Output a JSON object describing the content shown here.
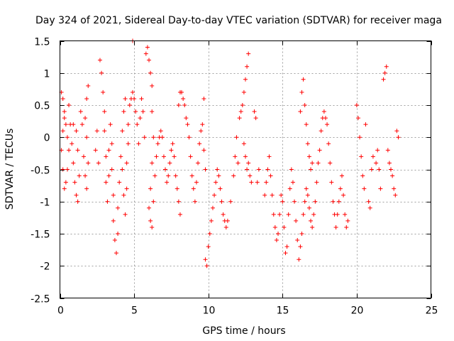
{
  "chart_data": {
    "type": "scatter",
    "title": "Day 324 of 2021, Sidereal Day-to-day VTEC variation (SDTVAR) for receiver maga",
    "xlabel": "GPS time / hours",
    "ylabel": "SDTVAR / TECUs",
    "xlim": [
      0,
      25
    ],
    "ylim": [
      -2.5,
      1.5
    ],
    "xticks": [
      0,
      5,
      10,
      15,
      20,
      25
    ],
    "yticks": [
      -2.5,
      -2,
      -1.5,
      -1,
      -0.5,
      0,
      0.5,
      1,
      1.5
    ],
    "grid": true,
    "marker": "plus",
    "color": "#ff0000",
    "series": [
      {
        "name": "SDTVAR",
        "points": [
          [
            0.1,
            0.7
          ],
          [
            0.2,
            0.6
          ],
          [
            0.3,
            0.4
          ],
          [
            0.4,
            0.2
          ],
          [
            0.5,
            0.0
          ],
          [
            0.6,
            -0.2
          ],
          [
            0.5,
            -0.5
          ],
          [
            0.4,
            -0.7
          ],
          [
            0.3,
            -0.8
          ],
          [
            0.2,
            -0.5
          ],
          [
            0.1,
            -0.2
          ],
          [
            0.2,
            0.1
          ],
          [
            0.3,
            0.3
          ],
          [
            0.6,
            0.5
          ],
          [
            0.7,
            0.2
          ],
          [
            0.8,
            -0.1
          ],
          [
            0.9,
            -0.4
          ],
          [
            1.0,
            -0.7
          ],
          [
            1.1,
            -0.9
          ],
          [
            1.2,
            -1.0
          ],
          [
            1.3,
            -0.6
          ],
          [
            1.2,
            -0.2
          ],
          [
            1.1,
            0.1
          ],
          [
            0.9,
            0.2
          ],
          [
            1.4,
            0.4
          ],
          [
            1.5,
            0.2
          ],
          [
            1.6,
            -0.3
          ],
          [
            1.7,
            -0.6
          ],
          [
            1.8,
            -0.8
          ],
          [
            1.9,
            -0.4
          ],
          [
            1.8,
            0.0
          ],
          [
            1.7,
            0.3
          ],
          [
            1.8,
            0.6
          ],
          [
            1.9,
            0.8
          ],
          [
            2.4,
            -0.2
          ],
          [
            2.5,
            0.1
          ],
          [
            2.6,
            -0.4
          ],
          [
            2.7,
            1.2
          ],
          [
            2.8,
            1.0
          ],
          [
            2.9,
            0.7
          ],
          [
            3.0,
            0.4
          ],
          [
            3.0,
            0.1
          ],
          [
            3.1,
            -0.3
          ],
          [
            3.1,
            -0.7
          ],
          [
            3.2,
            -1.0
          ],
          [
            3.3,
            -0.6
          ],
          [
            3.3,
            -0.2
          ],
          [
            3.4,
            0.2
          ],
          [
            3.5,
            -0.1
          ],
          [
            3.5,
            -0.5
          ],
          [
            3.6,
            -0.9
          ],
          [
            3.6,
            -1.3
          ],
          [
            3.7,
            -1.6
          ],
          [
            3.8,
            -1.8
          ],
          [
            3.9,
            -1.5
          ],
          [
            3.9,
            -1.1
          ],
          [
            4.0,
            -0.7
          ],
          [
            4.1,
            -0.3
          ],
          [
            4.2,
            0.1
          ],
          [
            4.3,
            0.4
          ],
          [
            4.4,
            0.6
          ],
          [
            4.2,
            -0.5
          ],
          [
            4.3,
            -0.9
          ],
          [
            4.4,
            -1.2
          ],
          [
            4.5,
            -0.8
          ],
          [
            4.5,
            -0.4
          ],
          [
            4.6,
            -0.1
          ],
          [
            4.6,
            0.2
          ],
          [
            4.7,
            0.5
          ],
          [
            4.8,
            0.6
          ],
          [
            4.9,
            0.7
          ],
          [
            4.9,
            1.5
          ],
          [
            5.0,
            0.6
          ],
          [
            5.1,
            0.4
          ],
          [
            5.2,
            0.2
          ],
          [
            5.3,
            -0.1
          ],
          [
            5.4,
            0.3
          ],
          [
            5.5,
            0.6
          ],
          [
            5.6,
            0.4
          ],
          [
            5.7,
            0.0
          ],
          [
            5.8,
            1.3
          ],
          [
            5.9,
            1.4
          ],
          [
            6.0,
            1.2
          ],
          [
            6.1,
            1.0
          ],
          [
            6.2,
            0.8
          ],
          [
            6.2,
            0.4
          ],
          [
            6.3,
            0.0
          ],
          [
            6.2,
            -0.4
          ],
          [
            6.1,
            -0.8
          ],
          [
            6.0,
            -1.1
          ],
          [
            6.1,
            -1.3
          ],
          [
            6.2,
            -1.4
          ],
          [
            6.3,
            -1.0
          ],
          [
            6.4,
            -0.6
          ],
          [
            6.5,
            -0.3
          ],
          [
            6.6,
            -0.1
          ],
          [
            6.7,
            0.0
          ],
          [
            6.8,
            0.1
          ],
          [
            6.9,
            0.0
          ],
          [
            7.0,
            -0.3
          ],
          [
            7.1,
            -0.5
          ],
          [
            7.2,
            -0.7
          ],
          [
            7.3,
            -0.6
          ],
          [
            7.4,
            -0.4
          ],
          [
            7.5,
            -0.2
          ],
          [
            7.6,
            -0.1
          ],
          [
            7.7,
            -0.3
          ],
          [
            7.8,
            -0.6
          ],
          [
            7.9,
            -0.8
          ],
          [
            8.0,
            -1.0
          ],
          [
            8.1,
            -1.2
          ],
          [
            8.0,
            0.5
          ],
          [
            8.1,
            0.7
          ],
          [
            8.2,
            0.7
          ],
          [
            8.3,
            0.6
          ],
          [
            8.4,
            0.5
          ],
          [
            8.5,
            0.3
          ],
          [
            8.6,
            0.2
          ],
          [
            8.7,
            0.0
          ],
          [
            8.8,
            -0.3
          ],
          [
            8.9,
            -0.6
          ],
          [
            9.0,
            -0.8
          ],
          [
            9.1,
            -1.0
          ],
          [
            9.2,
            -0.7
          ],
          [
            9.3,
            -0.4
          ],
          [
            9.4,
            -0.1
          ],
          [
            9.5,
            0.1
          ],
          [
            9.6,
            0.2
          ],
          [
            9.7,
            -0.2
          ],
          [
            9.8,
            -0.5
          ],
          [
            9.7,
            0.6
          ],
          [
            9.8,
            -1.9
          ],
          [
            9.9,
            -2.0
          ],
          [
            10.0,
            -1.7
          ],
          [
            10.1,
            -1.5
          ],
          [
            10.2,
            -1.3
          ],
          [
            10.3,
            -1.1
          ],
          [
            10.4,
            -0.9
          ],
          [
            10.5,
            -0.7
          ],
          [
            10.6,
            -0.5
          ],
          [
            10.7,
            -0.6
          ],
          [
            10.8,
            -0.8
          ],
          [
            10.9,
            -1.0
          ],
          [
            11.0,
            -1.2
          ],
          [
            11.1,
            -1.3
          ],
          [
            11.2,
            -1.4
          ],
          [
            11.3,
            -1.3
          ],
          [
            11.5,
            -1.0
          ],
          [
            11.7,
            -0.6
          ],
          [
            11.8,
            -0.3
          ],
          [
            11.9,
            0.0
          ],
          [
            12.0,
            -0.4
          ],
          [
            12.1,
            0.3
          ],
          [
            12.2,
            0.4
          ],
          [
            12.3,
            0.5
          ],
          [
            12.4,
            0.7
          ],
          [
            12.5,
            0.9
          ],
          [
            12.6,
            1.1
          ],
          [
            12.7,
            1.3
          ],
          [
            12.4,
            -0.1
          ],
          [
            12.5,
            -0.3
          ],
          [
            12.6,
            -0.5
          ],
          [
            12.7,
            -0.4
          ],
          [
            12.8,
            -0.6
          ],
          [
            12.9,
            -0.7
          ],
          [
            13.1,
            0.4
          ],
          [
            13.2,
            0.3
          ],
          [
            13.3,
            -0.7
          ],
          [
            13.4,
            -0.5
          ],
          [
            13.8,
            -0.9
          ],
          [
            13.9,
            -0.7
          ],
          [
            14.0,
            -0.5
          ],
          [
            14.1,
            -0.3
          ],
          [
            14.2,
            -0.6
          ],
          [
            14.3,
            -0.9
          ],
          [
            14.4,
            -1.2
          ],
          [
            14.5,
            -1.4
          ],
          [
            14.6,
            -1.6
          ],
          [
            14.7,
            -1.5
          ],
          [
            14.8,
            -1.2
          ],
          [
            14.9,
            -0.9
          ],
          [
            15.0,
            -1.0
          ],
          [
            15.1,
            -1.4
          ],
          [
            15.2,
            -1.8
          ],
          [
            15.3,
            -1.7
          ],
          [
            15.4,
            -1.2
          ],
          [
            15.5,
            -0.8
          ],
          [
            15.6,
            -0.5
          ],
          [
            15.7,
            -0.7
          ],
          [
            15.8,
            -1.0
          ],
          [
            15.9,
            -1.3
          ],
          [
            16.0,
            -1.6
          ],
          [
            16.1,
            -1.9
          ],
          [
            16.2,
            -1.7
          ],
          [
            16.3,
            -1.5
          ],
          [
            16.4,
            -1.2
          ],
          [
            16.5,
            -1.0
          ],
          [
            16.6,
            -0.8
          ],
          [
            16.7,
            -0.9
          ],
          [
            16.8,
            -1.1
          ],
          [
            16.9,
            -1.3
          ],
          [
            17.0,
            -1.4
          ],
          [
            17.1,
            -1.2
          ],
          [
            16.2,
            0.4
          ],
          [
            16.3,
            0.7
          ],
          [
            16.4,
            0.9
          ],
          [
            16.5,
            0.5
          ],
          [
            16.6,
            0.2
          ],
          [
            16.7,
            -0.1
          ],
          [
            16.8,
            -0.3
          ],
          [
            16.9,
            -0.5
          ],
          [
            17.0,
            -0.4
          ],
          [
            17.2,
            -1.0
          ],
          [
            17.3,
            -0.7
          ],
          [
            17.4,
            -0.4
          ],
          [
            17.5,
            -0.2
          ],
          [
            17.6,
            0.1
          ],
          [
            17.7,
            0.3
          ],
          [
            17.8,
            0.4
          ],
          [
            17.9,
            0.3
          ],
          [
            18.0,
            0.2
          ],
          [
            18.1,
            -0.1
          ],
          [
            18.2,
            -0.4
          ],
          [
            18.3,
            -0.7
          ],
          [
            18.4,
            -1.0
          ],
          [
            18.5,
            -1.2
          ],
          [
            18.6,
            -1.4
          ],
          [
            18.7,
            -1.2
          ],
          [
            18.8,
            -1.0
          ],
          [
            18.9,
            -0.8
          ],
          [
            19.0,
            -0.6
          ],
          [
            19.1,
            -0.9
          ],
          [
            19.2,
            -1.2
          ],
          [
            19.3,
            -1.4
          ],
          [
            19.4,
            -1.3
          ],
          [
            20.0,
            0.5
          ],
          [
            20.1,
            0.3
          ],
          [
            20.2,
            0.0
          ],
          [
            20.3,
            -0.3
          ],
          [
            20.4,
            -0.6
          ],
          [
            20.5,
            -0.8
          ],
          [
            20.6,
            0.2
          ],
          [
            20.8,
            -1.0
          ],
          [
            20.9,
            -1.1
          ],
          [
            21.0,
            -0.5
          ],
          [
            21.1,
            -0.3
          ],
          [
            21.3,
            -0.4
          ],
          [
            21.4,
            -0.2
          ],
          [
            21.5,
            -0.5
          ],
          [
            21.6,
            -0.8
          ],
          [
            21.8,
            0.9
          ],
          [
            21.9,
            1.0
          ],
          [
            22.0,
            1.1
          ],
          [
            22.1,
            -0.2
          ],
          [
            22.2,
            -0.4
          ],
          [
            22.3,
            -0.5
          ],
          [
            22.4,
            -0.6
          ],
          [
            22.5,
            -0.8
          ],
          [
            22.6,
            -0.9
          ],
          [
            22.7,
            0.1
          ],
          [
            22.8,
            0.0
          ]
        ]
      }
    ]
  }
}
